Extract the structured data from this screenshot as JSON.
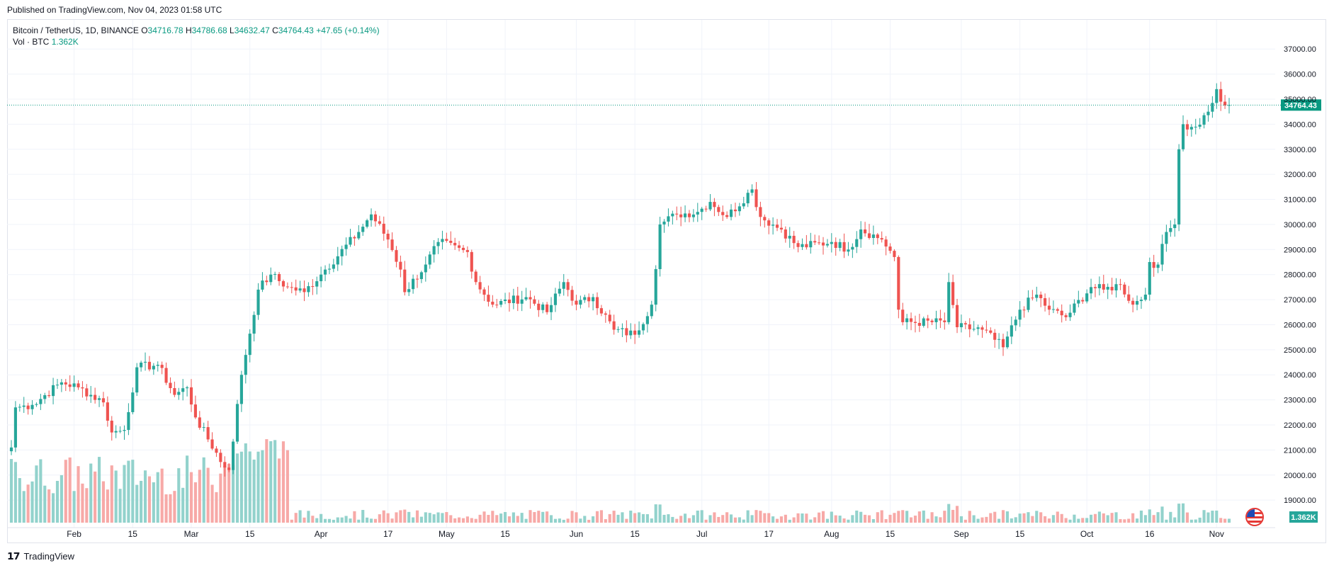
{
  "published_text": "Published on TradingView.com, Nov 04, 2023 01:58 UTC",
  "footer_brand": "TradingView",
  "legend": {
    "symbol": "Bitcoin / TetherUS, 1D, BINANCE",
    "o_label": "O",
    "o_value": "34716.78",
    "h_label": "H",
    "h_value": "34786.68",
    "l_label": "L",
    "l_value": "34632.47",
    "c_label": "C",
    "c_value": "34764.43",
    "change": "+47.65 (+0.14%)"
  },
  "volume_legend": {
    "label": "Vol · BTC",
    "value": "1.362K"
  },
  "colors": {
    "up": "#26a69a",
    "down": "#ef5350",
    "up_vol": "#92d2cc",
    "down_vol": "#f7a9a7",
    "grid": "#f0f3fa",
    "last_price": "#089981"
  },
  "chart_data": {
    "type": "candlestick",
    "symbol": "BTCUSDT",
    "interval": "1D",
    "x_range": [
      "2023-01-17",
      "2023-11-04"
    ],
    "ylim": [
      18100,
      37600
    ],
    "y_ticks": [
      "37000.00",
      "36000.00",
      "35000.00",
      "34000.00",
      "33000.00",
      "32000.00",
      "31000.00",
      "30000.00",
      "29000.00",
      "28000.00",
      "27000.00",
      "26000.00",
      "25000.00",
      "24000.00",
      "23000.00",
      "22000.00",
      "21000.00",
      "20000.00",
      "19000.00"
    ],
    "x_ticks": [
      {
        "label": "Feb",
        "date": "2023-02-01"
      },
      {
        "label": "15",
        "date": "2023-02-15"
      },
      {
        "label": "Mar",
        "date": "2023-03-01"
      },
      {
        "label": "15",
        "date": "2023-03-15"
      },
      {
        "label": "Apr",
        "date": "2023-04-01"
      },
      {
        "label": "17",
        "date": "2023-04-17"
      },
      {
        "label": "May",
        "date": "2023-05-01"
      },
      {
        "label": "15",
        "date": "2023-05-15"
      },
      {
        "label": "Jun",
        "date": "2023-06-01"
      },
      {
        "label": "15",
        "date": "2023-06-15"
      },
      {
        "label": "Jul",
        "date": "2023-07-01"
      },
      {
        "label": "17",
        "date": "2023-07-17"
      },
      {
        "label": "Aug",
        "date": "2023-08-01"
      },
      {
        "label": "15",
        "date": "2023-08-15"
      },
      {
        "label": "Sep",
        "date": "2023-09-01"
      },
      {
        "label": "15",
        "date": "2023-09-15"
      },
      {
        "label": "Oct",
        "date": "2023-10-01"
      },
      {
        "label": "16",
        "date": "2023-10-16"
      },
      {
        "label": "Nov",
        "date": "2023-11-01"
      }
    ],
    "last_price": 34764.43,
    "last_price_label": "34764.43",
    "volume_last_label": "1.362K",
    "daily_close_anchors": [
      {
        "date": "2023-01-17",
        "close": 21100
      },
      {
        "date": "2023-01-18",
        "close": 22700
      },
      {
        "date": "2023-01-22",
        "close": 22800
      },
      {
        "date": "2023-01-29",
        "close": 23700
      },
      {
        "date": "2023-02-02",
        "close": 23500
      },
      {
        "date": "2023-02-08",
        "close": 22900
      },
      {
        "date": "2023-02-10",
        "close": 21700
      },
      {
        "date": "2023-02-13",
        "close": 21800
      },
      {
        "date": "2023-02-16",
        "close": 24300
      },
      {
        "date": "2023-02-21",
        "close": 24400
      },
      {
        "date": "2023-02-25",
        "close": 23200
      },
      {
        "date": "2023-02-28",
        "close": 23500
      },
      {
        "date": "2023-03-02",
        "close": 22300
      },
      {
        "date": "2023-03-09",
        "close": 20300
      },
      {
        "date": "2023-03-10",
        "close": 20200
      },
      {
        "date": "2023-03-13",
        "close": 24000
      },
      {
        "date": "2023-03-17",
        "close": 27400
      },
      {
        "date": "2023-03-20",
        "close": 28000
      },
      {
        "date": "2023-03-24",
        "close": 27500
      },
      {
        "date": "2023-03-28",
        "close": 27300
      },
      {
        "date": "2023-04-02",
        "close": 28200
      },
      {
        "date": "2023-04-10",
        "close": 29700
      },
      {
        "date": "2023-04-13",
        "close": 30400
      },
      {
        "date": "2023-04-17",
        "close": 29400
      },
      {
        "date": "2023-04-20",
        "close": 28200
      },
      {
        "date": "2023-04-21",
        "close": 27300
      },
      {
        "date": "2023-04-26",
        "close": 28400
      },
      {
        "date": "2023-04-29",
        "close": 29300
      },
      {
        "date": "2023-05-06",
        "close": 28900
      },
      {
        "date": "2023-05-08",
        "close": 27700
      },
      {
        "date": "2023-05-12",
        "close": 26800
      },
      {
        "date": "2023-05-20",
        "close": 27100
      },
      {
        "date": "2023-05-25",
        "close": 26500
      },
      {
        "date": "2023-05-29",
        "close": 27700
      },
      {
        "date": "2023-06-01",
        "close": 26800
      },
      {
        "date": "2023-06-05",
        "close": 27100
      },
      {
        "date": "2023-06-10",
        "close": 25800
      },
      {
        "date": "2023-06-15",
        "close": 25600
      },
      {
        "date": "2023-06-19",
        "close": 26800
      },
      {
        "date": "2023-06-21",
        "close": 30000
      },
      {
        "date": "2023-06-25",
        "close": 30400
      },
      {
        "date": "2023-06-30",
        "close": 30500
      },
      {
        "date": "2023-07-03",
        "close": 30900
      },
      {
        "date": "2023-07-07",
        "close": 30300
      },
      {
        "date": "2023-07-13",
        "close": 31400
      },
      {
        "date": "2023-07-15",
        "close": 30300
      },
      {
        "date": "2023-07-20",
        "close": 29800
      },
      {
        "date": "2023-07-24",
        "close": 29100
      },
      {
        "date": "2023-08-01",
        "close": 29300
      },
      {
        "date": "2023-08-05",
        "close": 29000
      },
      {
        "date": "2023-08-08",
        "close": 29800
      },
      {
        "date": "2023-08-13",
        "close": 29400
      },
      {
        "date": "2023-08-16",
        "close": 28700
      },
      {
        "date": "2023-08-17",
        "close": 26600
      },
      {
        "date": "2023-08-18",
        "close": 26100
      },
      {
        "date": "2023-08-28",
        "close": 26100
      },
      {
        "date": "2023-08-29",
        "close": 27700
      },
      {
        "date": "2023-08-31",
        "close": 25900
      },
      {
        "date": "2023-09-06",
        "close": 25800
      },
      {
        "date": "2023-09-11",
        "close": 25100
      },
      {
        "date": "2023-09-15",
        "close": 26600
      },
      {
        "date": "2023-09-19",
        "close": 27200
      },
      {
        "date": "2023-09-22",
        "close": 26600
      },
      {
        "date": "2023-09-26",
        "close": 26300
      },
      {
        "date": "2023-10-02",
        "close": 27500
      },
      {
        "date": "2023-10-05",
        "close": 27400
      },
      {
        "date": "2023-10-09",
        "close": 27600
      },
      {
        "date": "2023-10-12",
        "close": 26800
      },
      {
        "date": "2023-10-15",
        "close": 27200
      },
      {
        "date": "2023-10-16",
        "close": 28500
      },
      {
        "date": "2023-10-18",
        "close": 28400
      },
      {
        "date": "2023-10-20",
        "close": 29700
      },
      {
        "date": "2023-10-22",
        "close": 30000
      },
      {
        "date": "2023-10-23",
        "close": 33000
      },
      {
        "date": "2023-10-24",
        "close": 34000
      },
      {
        "date": "2023-10-27",
        "close": 33900
      },
      {
        "date": "2023-10-30",
        "close": 34500
      },
      {
        "date": "2023-11-01",
        "close": 35400
      },
      {
        "date": "2023-11-02",
        "close": 34900
      },
      {
        "date": "2023-11-03",
        "close": 34750
      },
      {
        "date": "2023-11-04",
        "close": 34764.43
      }
    ]
  }
}
